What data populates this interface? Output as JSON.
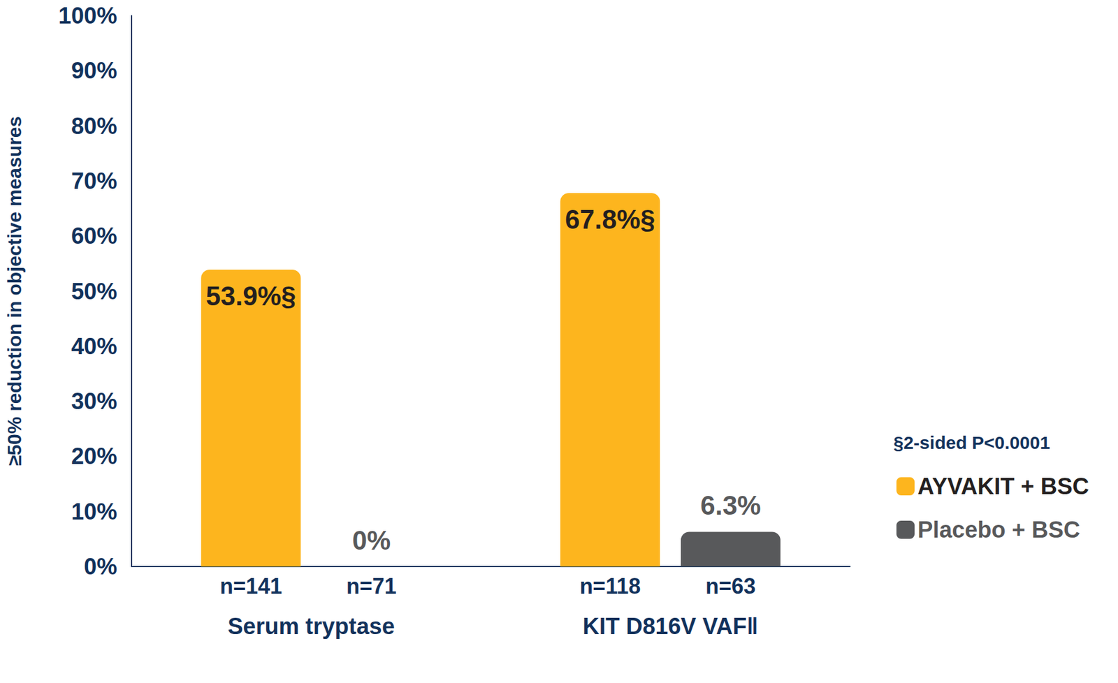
{
  "chart_data": {
    "type": "bar",
    "categories": [
      "Serum tryptase",
      "KIT D816V VAF‖"
    ],
    "y_label": "≥50% reduction in objective measures",
    "series": [
      {
        "name": "AYVAKIT + BSC",
        "color": "#FDB51E",
        "values": [
          53.9,
          67.8
        ],
        "value_labels": [
          "53.9%§",
          "67.8%§"
        ],
        "n_labels": [
          "n=141",
          "n=118"
        ]
      },
      {
        "name": "Placebo + BSC",
        "color": "#58595B",
        "values": [
          0,
          6.3
        ],
        "value_labels": [
          "0%",
          "6.3%"
        ],
        "n_labels": [
          "n=71",
          "n=63"
        ]
      }
    ],
    "ylim": [
      0,
      100
    ],
    "yticks": [
      {
        "value": 0,
        "label": "0%"
      },
      {
        "value": 10,
        "label": "10%"
      },
      {
        "value": 20,
        "label": "20%"
      },
      {
        "value": 30,
        "label": "30%"
      },
      {
        "value": 40,
        "label": "40%"
      },
      {
        "value": 50,
        "label": "50%"
      },
      {
        "value": 60,
        "label": "60%"
      },
      {
        "value": 70,
        "label": "70%"
      },
      {
        "value": 80,
        "label": "80%"
      },
      {
        "value": 90,
        "label": "90%"
      },
      {
        "value": 100,
        "label": "100%"
      }
    ],
    "grid": false,
    "data_labels": true,
    "legend": "right",
    "annotations": [
      "§2-sided P<0.0001"
    ]
  }
}
